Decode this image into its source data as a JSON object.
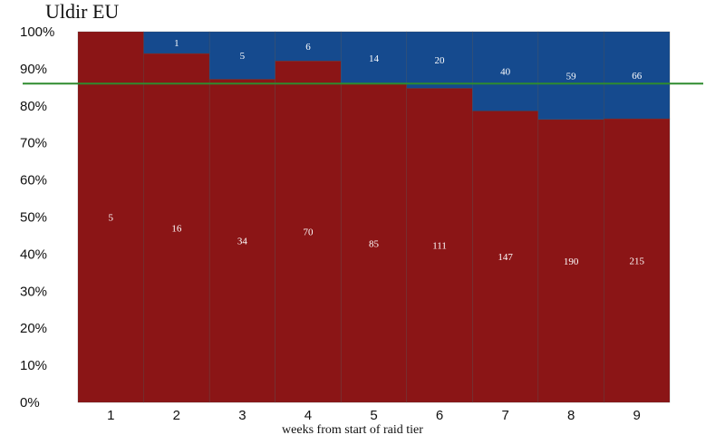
{
  "chart_data": {
    "type": "bar",
    "stacked": true,
    "normalized": true,
    "title": "Uldir EU",
    "xlabel": "weeks from start of raid tier",
    "ylabel": "",
    "categories": [
      "1",
      "2",
      "3",
      "4",
      "5",
      "6",
      "7",
      "8",
      "9"
    ],
    "y_ticks": [
      "0%",
      "10%",
      "20%",
      "30%",
      "40%",
      "50%",
      "60%",
      "70%",
      "80%",
      "90%",
      "100%"
    ],
    "ylim": [
      0,
      100
    ],
    "series": [
      {
        "values": [
          5,
          16,
          34,
          70,
          85,
          111,
          147,
          190,
          215
        ],
        "color": "#8b1516"
      },
      {
        "values": [
          0,
          1,
          5,
          6,
          14,
          20,
          40,
          59,
          66
        ],
        "color": "#154a8e"
      }
    ],
    "reference_line": {
      "value": 86,
      "color": "#2e8b2e"
    },
    "grid": false,
    "legend": "none"
  }
}
